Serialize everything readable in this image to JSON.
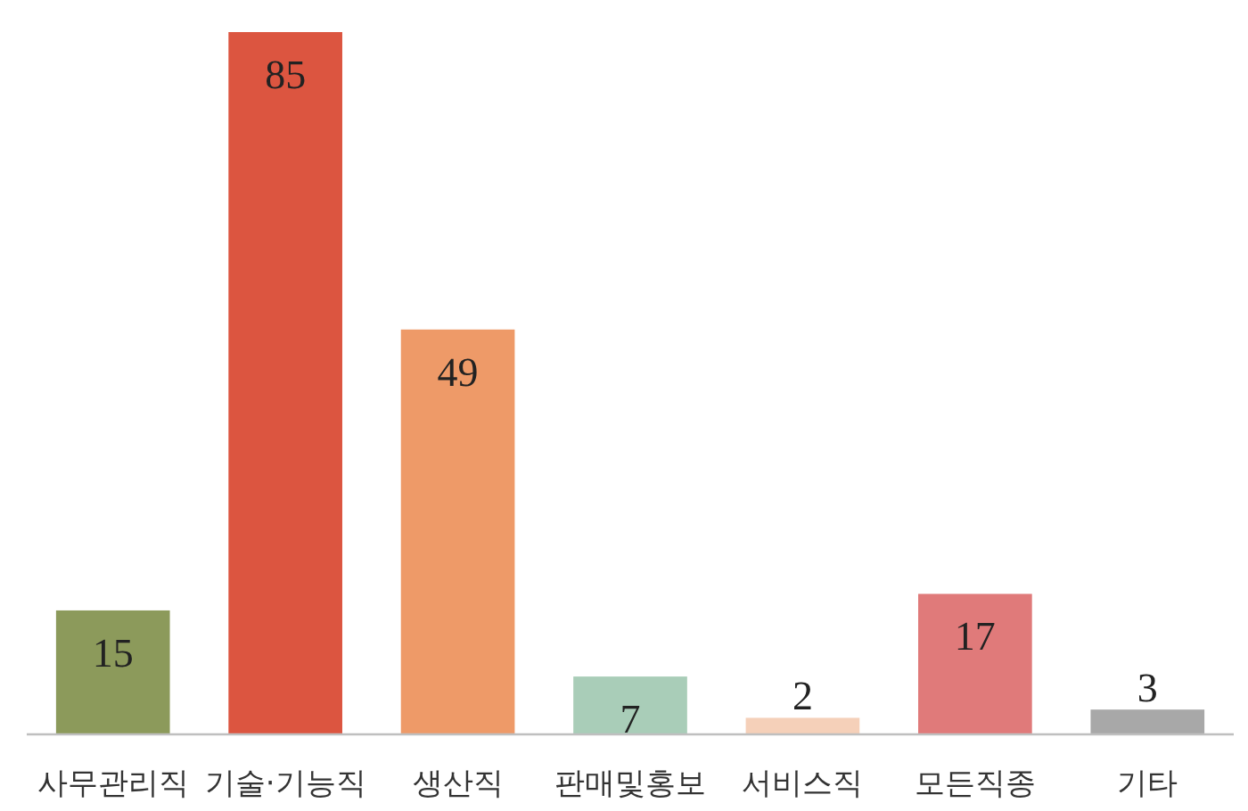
{
  "chart_data": {
    "type": "bar",
    "categories": [
      "사무관리직",
      "기술·기능직",
      "생산직",
      "판매및홍보",
      "서비스직",
      "모든직종",
      "기타"
    ],
    "values": [
      15,
      85,
      49,
      7,
      2,
      17,
      3
    ],
    "colors": [
      "#8c9a5b",
      "#dc5540",
      "#ee9a68",
      "#a9cdb8",
      "#f5d0b9",
      "#e07a7a",
      "#a8a8a8"
    ],
    "data_labels": true
  }
}
